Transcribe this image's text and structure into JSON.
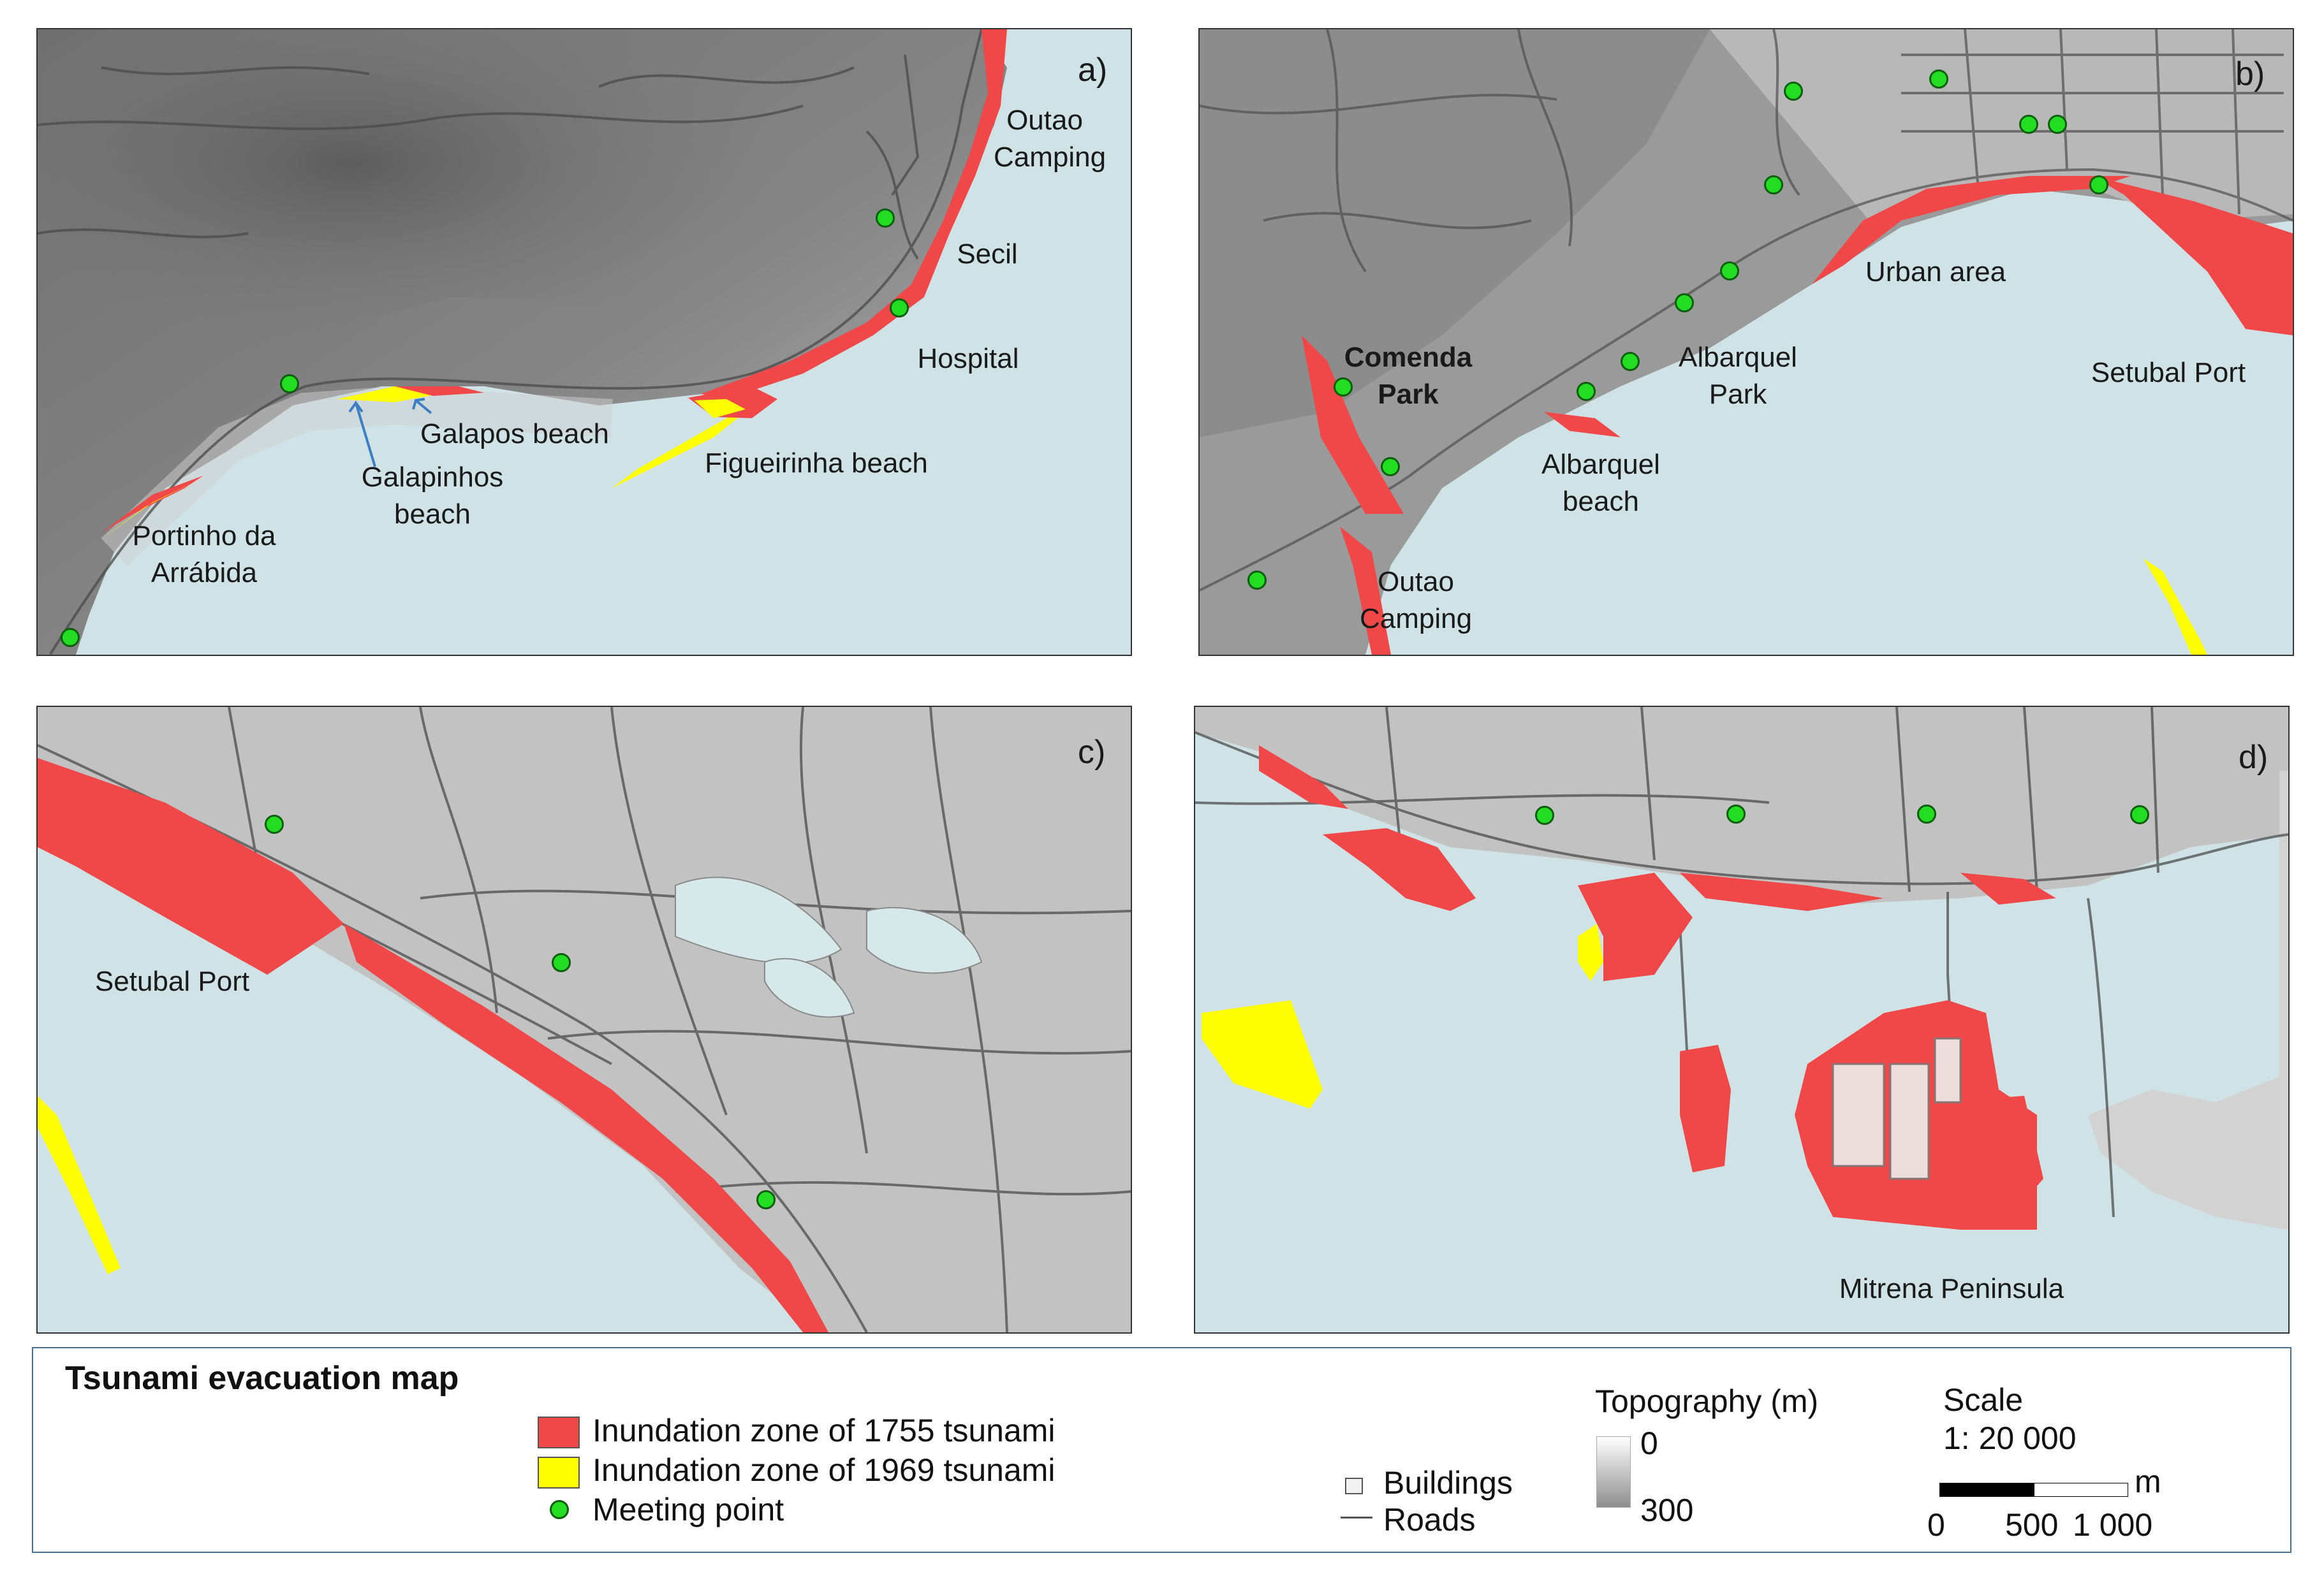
{
  "colors": {
    "inundation_1755": "#f04848",
    "inundation_1969": "#ffff00",
    "meeting_point": "#22dd22",
    "sea": "#cfe2e6"
  },
  "panels": [
    {
      "id": "a",
      "letter": "a)",
      "labels": [
        {
          "text": "Outao\nCamping"
        },
        {
          "text": "Secil"
        },
        {
          "text": "Hospital"
        },
        {
          "text": "Galapos beach"
        },
        {
          "text": "Galapinhos\nbeach"
        },
        {
          "text": "Figueirinha beach"
        },
        {
          "text": "Portinho da\nArrábida"
        }
      ]
    },
    {
      "id": "b",
      "letter": "b)",
      "labels": [
        {
          "text": "Urban area"
        },
        {
          "text": "Comenda\nPark",
          "bold": true
        },
        {
          "text": "Albarquel\nPark"
        },
        {
          "text": "Setubal Port"
        },
        {
          "text": "Albarquel\nbeach"
        },
        {
          "text": "Outao\nCamping"
        }
      ]
    },
    {
      "id": "c",
      "letter": "c)",
      "labels": [
        {
          "text": "Setubal Port"
        }
      ]
    },
    {
      "id": "d",
      "letter": "d)",
      "labels": [
        {
          "text": "Mitrena Peninsula"
        }
      ]
    }
  ],
  "legend": {
    "title": "Tsunami evacuation map",
    "items": [
      {
        "label": "Inundation zone of 1755 tsunami",
        "symbol": "red-swatch"
      },
      {
        "label": "Inundation zone of 1969 tsunami",
        "symbol": "yellow-swatch"
      },
      {
        "label": "Meeting point",
        "symbol": "green-dot"
      }
    ],
    "buildings": "Buildings",
    "roads": "Roads",
    "topography": {
      "title": "Topography (m)",
      "min": "0",
      "max": "300"
    },
    "scale": {
      "title": "Scale",
      "ratio": "1: 20 000",
      "unit": "m",
      "ticks": [
        "0",
        "500",
        "1 000"
      ]
    }
  }
}
